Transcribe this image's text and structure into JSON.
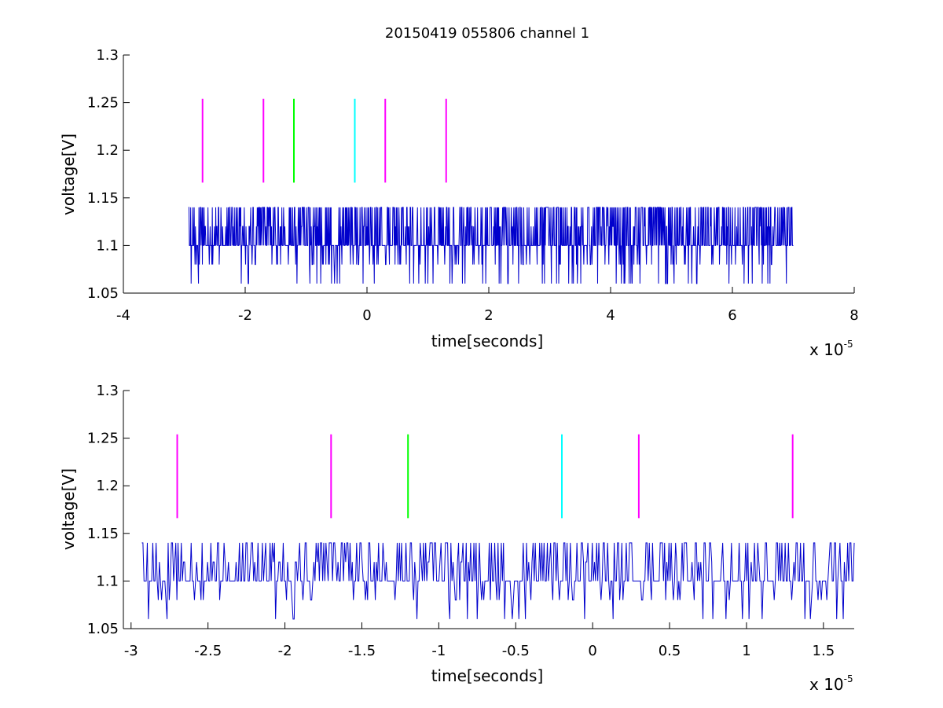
{
  "chart_data": [
    {
      "type": "line",
      "title": "20150419 055806 channel 1",
      "xlabel": "time[seconds]",
      "ylabel": "voltage[V]",
      "x_exponent_label": "x 10",
      "x_exponent_power": "-5",
      "xlim": [
        -4e-05,
        8e-05
      ],
      "ylim": [
        1.05,
        1.3
      ],
      "xticks": [
        -4,
        -2,
        0,
        2,
        4,
        6,
        8
      ],
      "xtick_labels": [
        "-4",
        "-2",
        "0",
        "2",
        "4",
        "6",
        "8"
      ],
      "yticks": [
        1.05,
        1.1,
        1.15,
        1.2,
        1.25,
        1.3
      ],
      "ytick_labels": [
        "1.05",
        "1.1",
        "1.15",
        "1.2",
        "1.25",
        "1.3"
      ],
      "grid": false,
      "signal": {
        "color": "#0000cc",
        "x_range": [
          -2.93e-05,
          7e-05
        ],
        "baseline": 1.1,
        "levels": [
          1.06,
          1.08,
          1.1,
          1.12,
          1.14
        ]
      },
      "markers": [
        {
          "x": -2.7e-05,
          "y": [
            1.166,
            1.254
          ],
          "color": "#ff00ff"
        },
        {
          "x": -1.7e-05,
          "y": [
            1.166,
            1.254
          ],
          "color": "#ff00ff"
        },
        {
          "x": -1.2e-05,
          "y": [
            1.166,
            1.254
          ],
          "color": "#00ff00"
        },
        {
          "x": -2e-06,
          "y": [
            1.166,
            1.254
          ],
          "color": "#00ffff"
        },
        {
          "x": 3e-06,
          "y": [
            1.166,
            1.254
          ],
          "color": "#ff00ff"
        },
        {
          "x": 1.3e-05,
          "y": [
            1.166,
            1.254
          ],
          "color": "#ff00ff"
        }
      ]
    },
    {
      "type": "line",
      "title": "",
      "xlabel": "time[seconds]",
      "ylabel": "voltage[V]",
      "x_exponent_label": "x 10",
      "x_exponent_power": "-5",
      "xlim": [
        -3.05e-05,
        1.7e-05
      ],
      "ylim": [
        1.05,
        1.3
      ],
      "xticks": [
        -3,
        -2.5,
        -2,
        -1.5,
        -1,
        -0.5,
        0,
        0.5,
        1,
        1.5
      ],
      "xtick_labels": [
        "-3",
        "-2.5",
        "-2",
        "-1.5",
        "-1",
        "-0.5",
        "0",
        "0.5",
        "1",
        "1.5"
      ],
      "yticks": [
        1.05,
        1.1,
        1.15,
        1.2,
        1.25,
        1.3
      ],
      "ytick_labels": [
        "1.05",
        "1.1",
        "1.15",
        "1.2",
        "1.25",
        "1.3"
      ],
      "grid": false,
      "signal": {
        "color": "#0000cc",
        "x_range": [
          -2.93e-05,
          1.7e-05
        ],
        "baseline": 1.1,
        "levels": [
          1.06,
          1.08,
          1.1,
          1.12,
          1.14
        ]
      },
      "markers": [
        {
          "x": -2.7e-05,
          "y": [
            1.166,
            1.254
          ],
          "color": "#ff00ff"
        },
        {
          "x": -1.7e-05,
          "y": [
            1.166,
            1.254
          ],
          "color": "#ff00ff"
        },
        {
          "x": -1.2e-05,
          "y": [
            1.166,
            1.254
          ],
          "color": "#00ff00"
        },
        {
          "x": -2e-06,
          "y": [
            1.166,
            1.254
          ],
          "color": "#00ffff"
        },
        {
          "x": 3e-06,
          "y": [
            1.166,
            1.254
          ],
          "color": "#ff00ff"
        },
        {
          "x": 1.3e-05,
          "y": [
            1.166,
            1.254
          ],
          "color": "#ff00ff"
        }
      ]
    }
  ]
}
